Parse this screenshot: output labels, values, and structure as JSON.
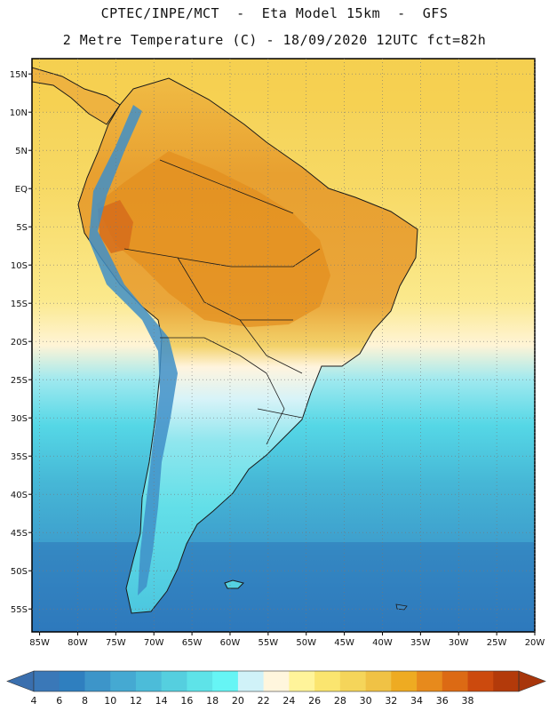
{
  "header": {
    "title_line1": "CPTEC/INPE/MCT  -  Eta Model 15km  -  GFS",
    "title_line2": "2 Metre Temperature (C) - 18/09/2020 12UTC fct=82h"
  },
  "map": {
    "lon_range": [
      -86,
      -20
    ],
    "lat_range": [
      -58,
      17
    ],
    "lat_ticks": [
      {
        "value": 15,
        "label": "15N"
      },
      {
        "value": 10,
        "label": "10N"
      },
      {
        "value": 5,
        "label": "5N"
      },
      {
        "value": 0,
        "label": "EQ"
      },
      {
        "value": -5,
        "label": "5S"
      },
      {
        "value": -10,
        "label": "10S"
      },
      {
        "value": -15,
        "label": "15S"
      },
      {
        "value": -20,
        "label": "20S"
      },
      {
        "value": -25,
        "label": "25S"
      },
      {
        "value": -30,
        "label": "30S"
      },
      {
        "value": -35,
        "label": "35S"
      },
      {
        "value": -40,
        "label": "40S"
      },
      {
        "value": -45,
        "label": "45S"
      },
      {
        "value": -50,
        "label": "50S"
      },
      {
        "value": -55,
        "label": "55S"
      }
    ],
    "lon_ticks": [
      {
        "value": -85,
        "label": "85W"
      },
      {
        "value": -80,
        "label": "80W"
      },
      {
        "value": -75,
        "label": "75W"
      },
      {
        "value": -70,
        "label": "70W"
      },
      {
        "value": -65,
        "label": "65W"
      },
      {
        "value": -60,
        "label": "60W"
      },
      {
        "value": -55,
        "label": "55W"
      },
      {
        "value": -50,
        "label": "50W"
      },
      {
        "value": -45,
        "label": "45W"
      },
      {
        "value": -40,
        "label": "40W"
      },
      {
        "value": -35,
        "label": "35W"
      },
      {
        "value": -30,
        "label": "30W"
      },
      {
        "value": -25,
        "label": "25W"
      },
      {
        "value": -20,
        "label": "20W"
      }
    ]
  },
  "colorbar": {
    "boundaries": [
      "4",
      "6",
      "8",
      "10",
      "12",
      "14",
      "16",
      "18",
      "20",
      "22",
      "24",
      "26",
      "28",
      "30",
      "32",
      "34",
      "36",
      "38"
    ],
    "colors": [
      "#3a78b8",
      "#2f7fbf",
      "#3d95c9",
      "#45a9d2",
      "#4cbcd9",
      "#55cfdf",
      "#5ee3e8",
      "#66f5f5",
      "#d0f2f8",
      "#fff6dd",
      "#fff49a",
      "#fbe56f",
      "#f5d55a",
      "#f0c245",
      "#eeab22",
      "#e78a1c",
      "#dc6a14",
      "#cc4a0e",
      "#b33a0a"
    ],
    "left_end_color": "#3a6fae",
    "right_end_color": "#a8360b"
  }
}
